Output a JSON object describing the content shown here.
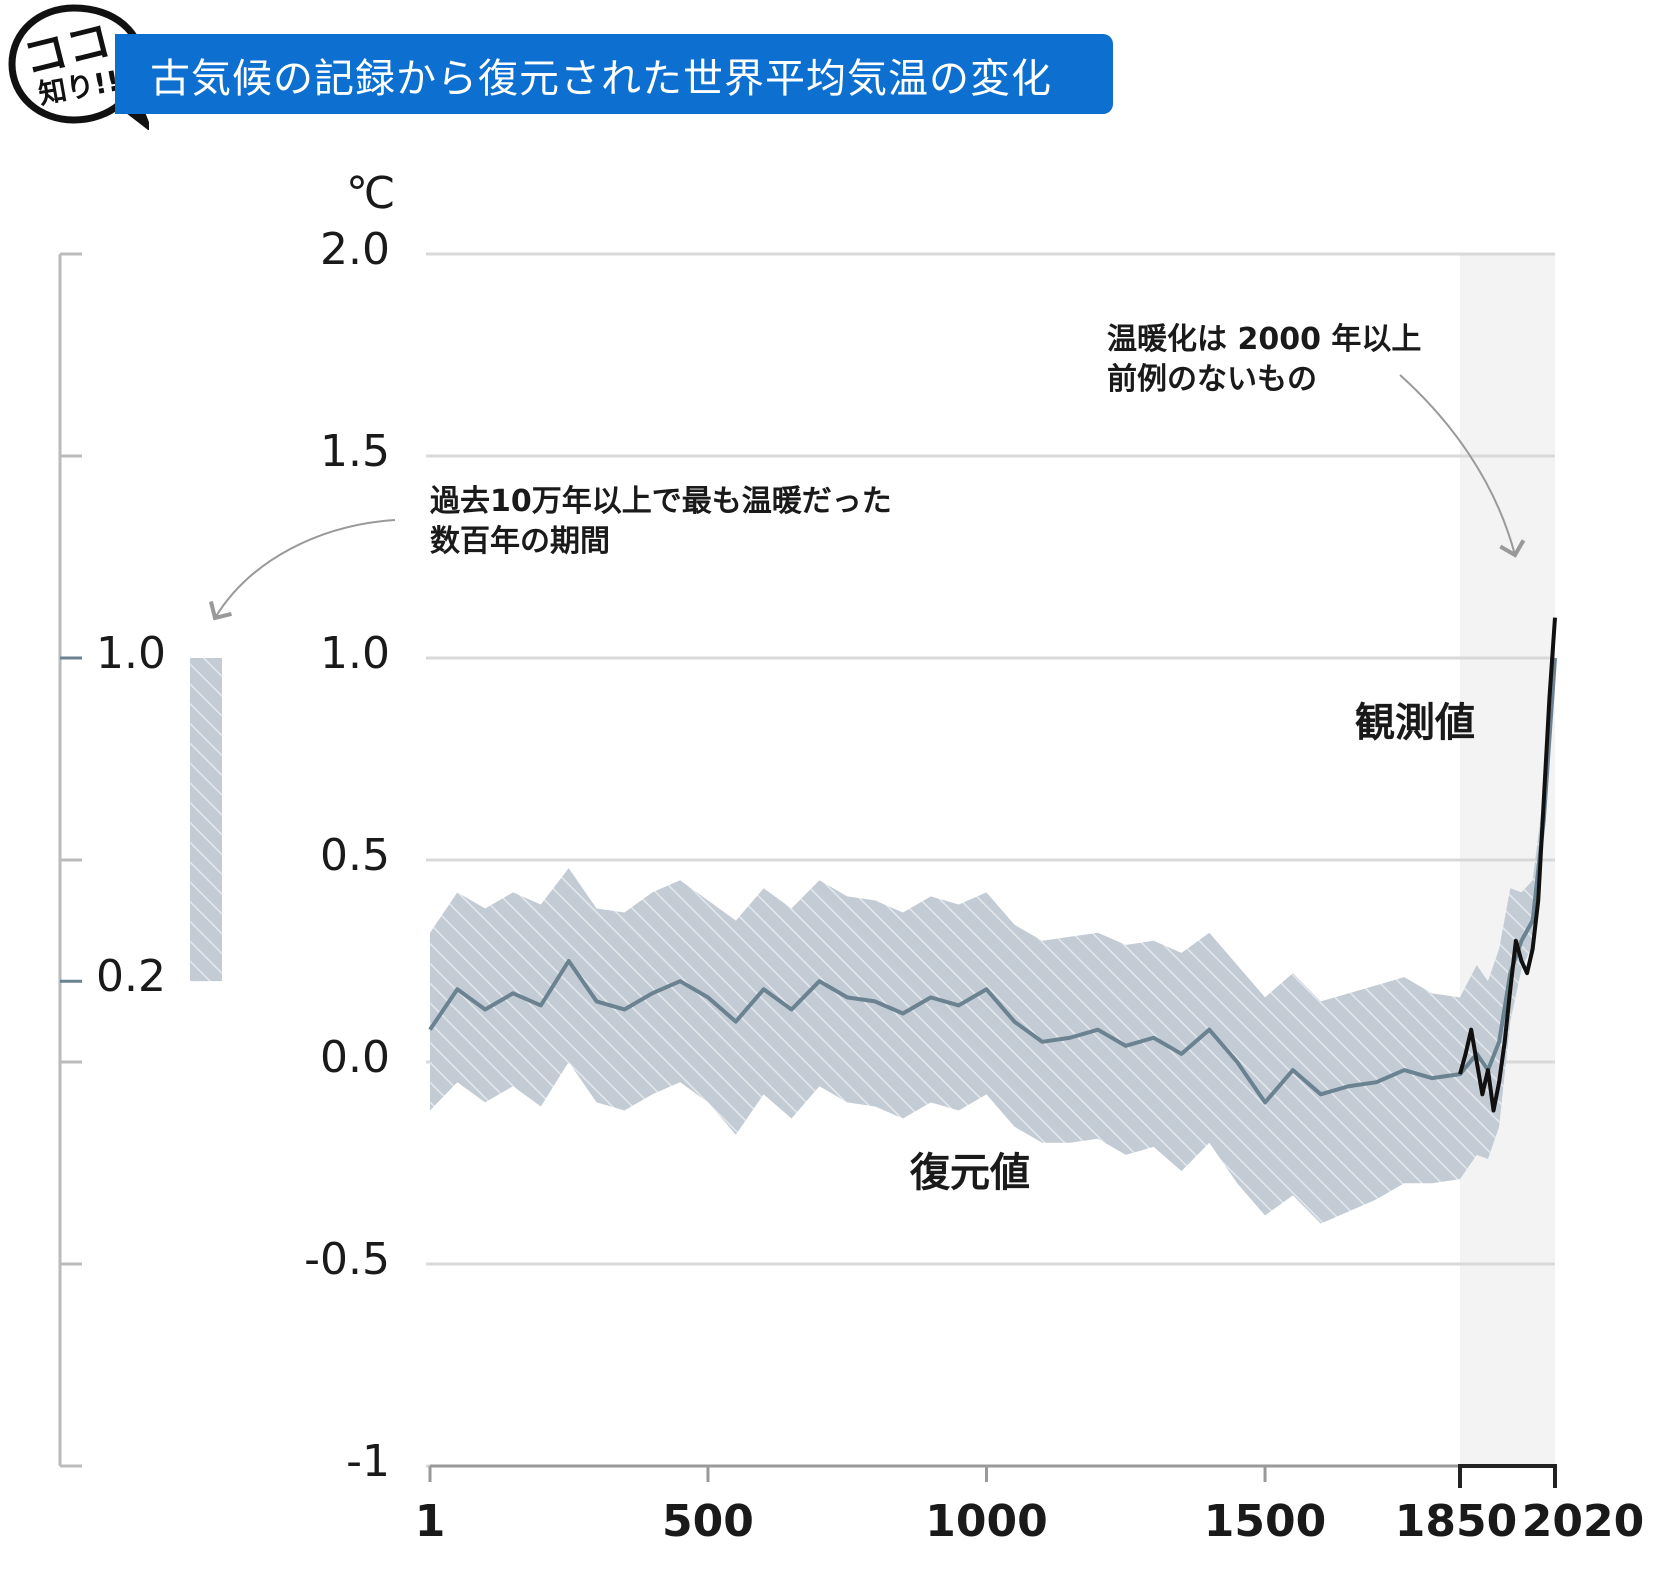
{
  "header": {
    "badge_top": "ココ",
    "badge_bottom": "知り!!",
    "title": "古気候の記録から復元された世界平均気温の変化"
  },
  "colors": {
    "title_bar": "#0d6fcf",
    "band_fill": "#c3ccd5",
    "band_hatch": "#ffffff",
    "reconstruction_line": "#6b8290",
    "observation_line": "#111111",
    "modern_shade": "#f2f3f2",
    "grid": "#d9d9d9",
    "axis": "#999999"
  },
  "chart_data": {
    "type": "line",
    "unit": "℃",
    "ylim": [
      -1,
      2
    ],
    "xlim": [
      1,
      2020
    ],
    "yticks": [
      {
        "value": 2.0,
        "label": "2.0"
      },
      {
        "value": 1.5,
        "label": "1.5"
      },
      {
        "value": 1.0,
        "label": "1.0"
      },
      {
        "value": 0.5,
        "label": "0.5"
      },
      {
        "value": 0.0,
        "label": "0.0"
      },
      {
        "value": -0.5,
        "label": "-0.5"
      },
      {
        "value": -1,
        "label": "-1"
      }
    ],
    "xticks": [
      {
        "value": 1,
        "label": "1"
      },
      {
        "value": 500,
        "label": "500"
      },
      {
        "value": 1000,
        "label": "1000"
      },
      {
        "value": 1500,
        "label": "1500"
      },
      {
        "value": 1850,
        "label": "1850"
      },
      {
        "value": 2020,
        "label": "2020"
      }
    ],
    "shaded_period": [
      1850,
      2020
    ],
    "grid": true,
    "series": [
      {
        "name": "復元値",
        "x": [
          1,
          50,
          100,
          150,
          200,
          250,
          300,
          350,
          400,
          450,
          500,
          550,
          600,
          650,
          700,
          750,
          800,
          850,
          900,
          950,
          1000,
          1050,
          1100,
          1150,
          1200,
          1250,
          1300,
          1350,
          1400,
          1450,
          1500,
          1550,
          1600,
          1650,
          1700,
          1750,
          1800,
          1850,
          1880,
          1900,
          1920,
          1940,
          1960,
          1980,
          2000,
          2020
        ],
        "y": [
          0.08,
          0.18,
          0.13,
          0.17,
          0.14,
          0.25,
          0.15,
          0.13,
          0.17,
          0.2,
          0.16,
          0.1,
          0.18,
          0.13,
          0.2,
          0.16,
          0.15,
          0.12,
          0.16,
          0.14,
          0.18,
          0.1,
          0.05,
          0.06,
          0.08,
          0.04,
          0.06,
          0.02,
          0.08,
          0.0,
          -0.1,
          -0.02,
          -0.08,
          -0.06,
          -0.05,
          -0.02,
          -0.04,
          -0.03,
          0.02,
          -0.02,
          0.05,
          0.22,
          0.3,
          0.35,
          0.6,
          1.0
        ],
        "y_low": [
          -0.12,
          -0.05,
          -0.1,
          -0.06,
          -0.11,
          0.0,
          -0.1,
          -0.12,
          -0.08,
          -0.05,
          -0.1,
          -0.18,
          -0.08,
          -0.14,
          -0.06,
          -0.1,
          -0.11,
          -0.14,
          -0.1,
          -0.12,
          -0.08,
          -0.16,
          -0.2,
          -0.2,
          -0.19,
          -0.23,
          -0.21,
          -0.27,
          -0.2,
          -0.3,
          -0.38,
          -0.33,
          -0.4,
          -0.37,
          -0.34,
          -0.3,
          -0.3,
          -0.29,
          -0.23,
          -0.24,
          -0.16,
          0.1,
          0.23,
          0.29,
          0.55,
          0.95
        ],
        "y_high": [
          0.32,
          0.42,
          0.38,
          0.42,
          0.39,
          0.48,
          0.38,
          0.37,
          0.42,
          0.45,
          0.4,
          0.35,
          0.43,
          0.38,
          0.45,
          0.41,
          0.4,
          0.37,
          0.41,
          0.39,
          0.42,
          0.34,
          0.3,
          0.31,
          0.32,
          0.29,
          0.3,
          0.27,
          0.32,
          0.24,
          0.16,
          0.22,
          0.15,
          0.17,
          0.19,
          0.21,
          0.17,
          0.16,
          0.24,
          0.2,
          0.28,
          0.43,
          0.42,
          0.45,
          0.67,
          1.05
        ]
      },
      {
        "name": "観測値",
        "x": [
          1850,
          1860,
          1870,
          1880,
          1890,
          1900,
          1910,
          1920,
          1930,
          1940,
          1950,
          1960,
          1970,
          1980,
          1990,
          2000,
          2010,
          2020
        ],
        "y": [
          -0.03,
          0.02,
          0.08,
          0.0,
          -0.08,
          -0.02,
          -0.12,
          -0.05,
          0.05,
          0.18,
          0.3,
          0.25,
          0.22,
          0.28,
          0.4,
          0.65,
          0.9,
          1.1
        ]
      }
    ],
    "inset": {
      "label": "過去10万年以上で最も温暖だった数百年の期間",
      "range": [
        0.2,
        1.0
      ],
      "ticks": [
        {
          "value": 1.0,
          "label": "1.0"
        },
        {
          "value": 0.2,
          "label": "0.2"
        }
      ]
    },
    "annotations": [
      {
        "text_lines": [
          "温暖化は 2000 年以上",
          "前例のないもの"
        ]
      },
      {
        "text_lines": [
          "過去10万年以上で最も温暖だった",
          "数百年の期間"
        ]
      }
    ]
  }
}
